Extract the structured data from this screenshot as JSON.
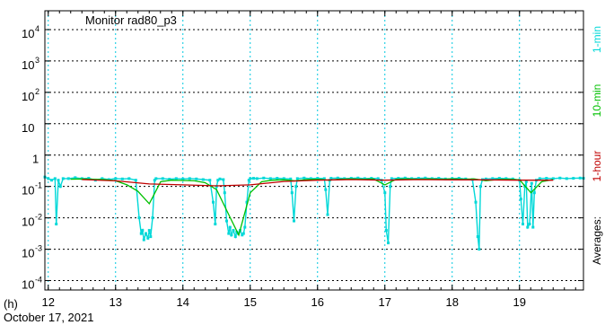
{
  "chart_data": {
    "type": "line",
    "title": "Monitor rad80_p3",
    "xlabel": "(h)",
    "date_label": "October 17, 2021",
    "x_unit": "hour",
    "xlim": [
      11.95,
      19.95
    ],
    "x_ticks": [
      12,
      13,
      14,
      15,
      16,
      17,
      18,
      19
    ],
    "y_scale": "log",
    "ylim_exp": [
      -4.3,
      4.6
    ],
    "y_ticks": [
      {
        "base": "10",
        "exp": "4",
        "value_exp": 4
      },
      {
        "base": "10",
        "exp": "3",
        "value_exp": 3
      },
      {
        "base": "10",
        "exp": "2",
        "value_exp": 2
      },
      {
        "base": "10",
        "exp": "",
        "value_exp": 1
      },
      {
        "base": "1",
        "exp": "",
        "value_exp": 0
      },
      {
        "base": "10",
        "exp": "-1",
        "value_exp": -1
      },
      {
        "base": "10",
        "exp": "-2",
        "value_exp": -2
      },
      {
        "base": "10",
        "exp": "-3",
        "value_exp": -3
      },
      {
        "base": "10",
        "exp": "-4",
        "value_exp": -4
      }
    ],
    "grid": true,
    "legend_title": "Averages:",
    "series": [
      {
        "name": "1-min",
        "color": "#00d8d8",
        "x": [
          11.95,
          12.0,
          12.05,
          12.1,
          12.12,
          12.15,
          12.18,
          12.22,
          12.3,
          12.4,
          12.5,
          12.6,
          12.7,
          12.8,
          12.9,
          13.0,
          13.1,
          13.2,
          13.3,
          13.35,
          13.38,
          13.4,
          13.42,
          13.45,
          13.48,
          13.5,
          13.52,
          13.55,
          13.58,
          13.6,
          13.7,
          13.8,
          13.9,
          14.0,
          14.1,
          14.2,
          14.3,
          14.4,
          14.45,
          14.48,
          14.5,
          14.52,
          14.55,
          14.6,
          14.62,
          14.65,
          14.68,
          14.7,
          14.72,
          14.75,
          14.78,
          14.8,
          14.82,
          14.85,
          14.88,
          14.9,
          14.92,
          14.95,
          14.98,
          15.0,
          15.05,
          15.1,
          15.2,
          15.3,
          15.4,
          15.5,
          15.6,
          15.62,
          15.65,
          15.68,
          15.7,
          15.8,
          15.9,
          16.0,
          16.1,
          16.12,
          16.15,
          16.18,
          16.2,
          16.3,
          16.4,
          16.5,
          16.6,
          16.7,
          16.8,
          16.9,
          16.95,
          17.0,
          17.02,
          17.05,
          17.08,
          17.1,
          17.2,
          17.3,
          17.4,
          17.5,
          17.6,
          17.7,
          17.8,
          17.9,
          18.0,
          18.1,
          18.2,
          18.3,
          18.35,
          18.38,
          18.4,
          18.42,
          18.45,
          18.5,
          18.6,
          18.7,
          18.8,
          18.9,
          19.0,
          19.02,
          19.05,
          19.08,
          19.1,
          19.12,
          19.15,
          19.18,
          19.2,
          19.22,
          19.25,
          19.3,
          19.4,
          19.5,
          19.6,
          19.7,
          19.8,
          19.9,
          19.95
        ],
        "y_exp": [
          -0.7,
          -0.75,
          -0.8,
          -0.75,
          -2.2,
          -0.8,
          -1.0,
          -0.75,
          -0.75,
          -0.72,
          -0.75,
          -0.74,
          -0.8,
          -0.75,
          -0.78,
          -0.75,
          -0.76,
          -0.75,
          -0.8,
          -2.0,
          -2.5,
          -2.4,
          -2.7,
          -2.5,
          -2.65,
          -2.4,
          -2.6,
          -2.0,
          -0.8,
          -0.75,
          -0.75,
          -0.77,
          -0.75,
          -0.76,
          -0.75,
          -0.76,
          -0.78,
          -0.8,
          -1.5,
          -2.2,
          -1.0,
          -0.8,
          -0.76,
          -0.78,
          -1.2,
          -2.1,
          -2.5,
          -2.3,
          -2.55,
          -2.4,
          -2.6,
          -2.45,
          -2.5,
          -2.4,
          -2.55,
          -2.5,
          -2.3,
          -1.5,
          -0.8,
          -0.75,
          -0.74,
          -0.75,
          -0.73,
          -0.75,
          -0.74,
          -0.75,
          -0.76,
          -1.2,
          -2.1,
          -1.0,
          -0.75,
          -0.73,
          -0.75,
          -0.74,
          -0.75,
          -1.1,
          -1.9,
          -0.8,
          -0.74,
          -0.73,
          -0.75,
          -0.74,
          -0.73,
          -0.75,
          -0.74,
          -0.75,
          -0.8,
          -1.2,
          -2.4,
          -2.8,
          -1.0,
          -0.75,
          -0.74,
          -0.73,
          -0.75,
          -0.74,
          -0.73,
          -0.75,
          -0.74,
          -0.76,
          -0.75,
          -0.74,
          -0.76,
          -0.78,
          -1.5,
          -2.6,
          -3.0,
          -1.0,
          -0.78,
          -0.76,
          -0.75,
          -0.74,
          -0.75,
          -0.76,
          -0.8,
          -1.4,
          -2.2,
          -1.0,
          -0.85,
          -2.3,
          -2.2,
          -0.9,
          -2.3,
          -1.2,
          -0.8,
          -0.75,
          -0.74,
          -0.75,
          -0.73,
          -0.75,
          -0.74,
          -0.73,
          -0.74
        ]
      },
      {
        "name": "10-min",
        "color": "#00c000",
        "x": [
          12.33,
          12.5,
          12.67,
          12.83,
          13.0,
          13.17,
          13.33,
          13.5,
          13.67,
          13.83,
          14.0,
          14.17,
          14.33,
          14.5,
          14.67,
          14.83,
          15.0,
          15.17,
          15.33,
          15.5,
          15.67,
          15.83,
          16.0,
          16.17,
          16.33,
          16.5,
          16.67,
          16.83,
          17.0,
          17.17,
          17.33,
          17.5,
          17.67,
          17.83,
          18.0,
          18.17,
          18.33,
          18.5,
          18.67,
          18.83,
          19.0,
          19.17,
          19.33,
          19.5
        ],
        "y_exp": [
          -0.77,
          -0.76,
          -0.77,
          -0.78,
          -0.82,
          -0.95,
          -1.15,
          -1.55,
          -0.85,
          -0.8,
          -0.81,
          -0.82,
          -0.88,
          -1.1,
          -1.85,
          -2.55,
          -1.2,
          -0.85,
          -0.8,
          -0.79,
          -0.82,
          -0.78,
          -0.77,
          -0.8,
          -0.77,
          -0.76,
          -0.77,
          -0.76,
          -0.95,
          -0.77,
          -0.76,
          -0.77,
          -0.76,
          -0.77,
          -0.76,
          -0.77,
          -0.76,
          -0.82,
          -0.78,
          -0.77,
          -0.79,
          -1.2,
          -0.85,
          -0.78
        ]
      },
      {
        "name": "1-hour",
        "color": "#c00000",
        "x": [
          12.5,
          13.0,
          13.5,
          14.0,
          14.5,
          15.0,
          15.5,
          16.0,
          16.5,
          17.0,
          17.5,
          18.0,
          18.5,
          19.0,
          19.5
        ],
        "y_exp": [
          -0.78,
          -0.82,
          -0.92,
          -0.95,
          -0.98,
          -0.95,
          -0.84,
          -0.8,
          -0.78,
          -0.8,
          -0.78,
          -0.79,
          -0.79,
          -0.8,
          -0.8
        ]
      }
    ]
  }
}
